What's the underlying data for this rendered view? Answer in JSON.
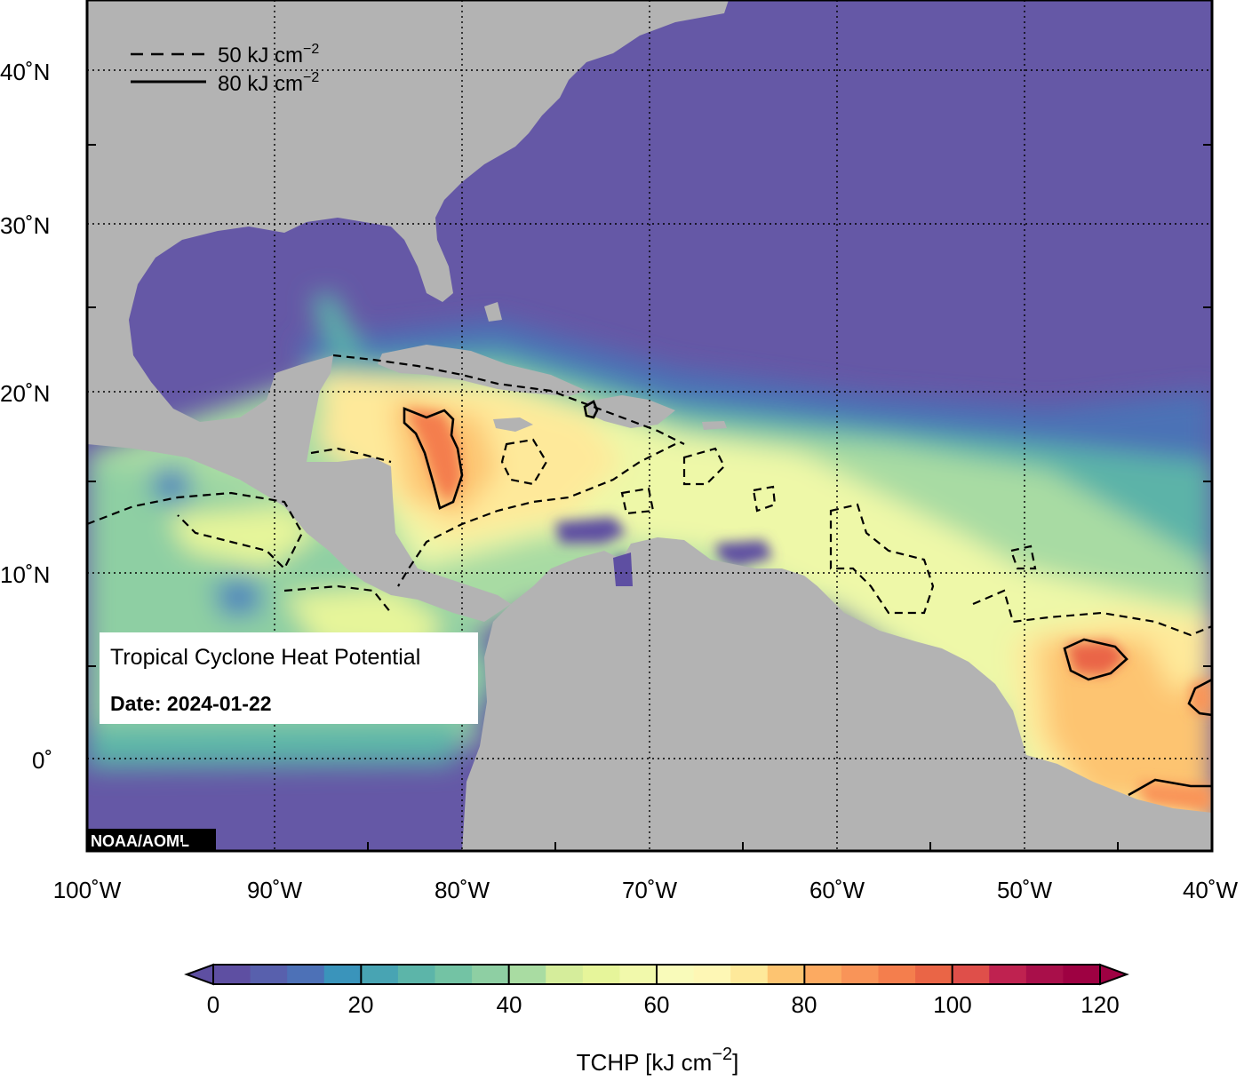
{
  "map": {
    "info_title": "Tropical Cyclone Heat Potential",
    "info_date": "Date: 2024-01-22",
    "credit": "NOAA/AOML",
    "legend": [
      {
        "label": "50 kJ cm",
        "sup": "−2",
        "style": "dashed"
      },
      {
        "label": "80 kJ cm",
        "sup": "−2",
        "style": "solid"
      }
    ],
    "lat_labels": [
      "40˚N",
      "30˚N",
      "20˚N",
      "10˚N",
      "0˚"
    ],
    "lon_labels": [
      "100˚W",
      "90˚W",
      "80˚W",
      "70˚W",
      "60˚W",
      "50˚W",
      "40˚W"
    ],
    "colors": {
      "land": "#b3b3b3",
      "deep_ocean": "#6558a6"
    }
  },
  "colorbar": {
    "ticks": [
      "0",
      "20",
      "40",
      "60",
      "80",
      "100",
      "120"
    ],
    "label_main": "TCHP [kJ cm",
    "label_sup": "−2",
    "label_end": "]",
    "range": [
      0,
      120
    ],
    "step": 5,
    "colors": [
      "#5e4fa2",
      "#5860ad",
      "#4d71b7",
      "#4283bc",
      "#3a94bb",
      "#48a4b3",
      "#5cb5a9",
      "#73c3a4",
      "#8ecfa3",
      "#a9dca2",
      "#c0e5a0",
      "#d5ed9b",
      "#e6f59a",
      "#f1f9ab",
      "#f9fbba",
      "#fef7b5",
      "#fee99a",
      "#fed783",
      "#fdc471",
      "#fcaa61",
      "#f99458",
      "#f47e4d",
      "#ea6546",
      "#df4f4a",
      "#d0374c",
      "#bf2250",
      "#a90f4a",
      "#9e0142"
    ]
  }
}
